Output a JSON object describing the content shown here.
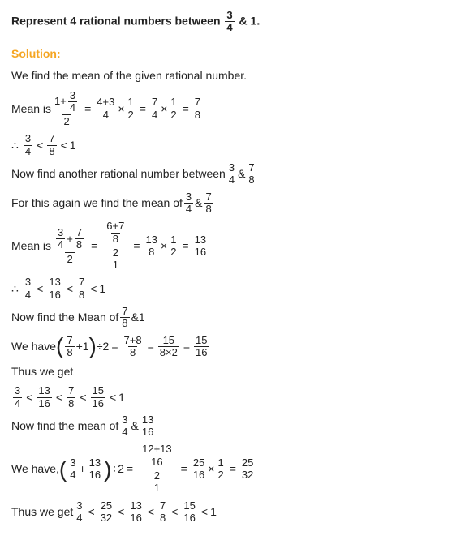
{
  "question": {
    "prefix": "Represent 4 rational numbers between ",
    "frac1_n": "3",
    "frac1_d": "4",
    "amp": "&",
    "end": "1."
  },
  "solution_label": "Solution:",
  "step1": "We find the mean of the given rational number.",
  "mean1": {
    "label": "Mean is ",
    "f1_n_1": "1",
    "f1_n_plus": "+",
    "f1_n_fn": "3",
    "f1_n_fd": "4",
    "f1_d": "2",
    "f2_n": "4+3",
    "f2_d": "4",
    "times1": "×",
    "f3_n": "1",
    "f3_d": "2",
    "f4_n": "7",
    "f4_d": "4",
    "f5_n": "1",
    "f5_d": "2",
    "f6_n": "7",
    "f6_d": "8"
  },
  "ineq1": {
    "a_n": "3",
    "a_d": "4",
    "b_n": "7",
    "b_d": "8",
    "end": "1"
  },
  "step2": {
    "text": "Now find another rational number between",
    "f1_n": "3",
    "f1_d": "4",
    "amp": "&",
    "f2_n": "7",
    "f2_d": "8"
  },
  "step3": {
    "text": "For this again we find the mean of ",
    "f1_n": "3",
    "f1_d": "4",
    "amp": "&",
    "f2_n": "7",
    "f2_d": "8"
  },
  "mean2": {
    "label": "Mean is ",
    "top_a_n": "3",
    "top_a_d": "4",
    "plus": "+",
    "top_b_n": "7",
    "top_b_d": "8",
    "bot": "2",
    "r1_top_n": "6+7",
    "r1_top_d": "8",
    "r1_bot_n": "2",
    "r1_bot_d": "1",
    "r2_n": "13",
    "r2_d": "8",
    "times": "×",
    "r3_n": "1",
    "r3_d": "2",
    "r4_n": "13",
    "r4_d": "16"
  },
  "ineq2": {
    "a_n": "3",
    "a_d": "4",
    "b_n": "13",
    "b_d": "16",
    "c_n": "7",
    "c_d": "8",
    "end": "1"
  },
  "step4": {
    "text": "Now find the Mean of ",
    "f1_n": "7",
    "f1_d": "8",
    "amp": "&",
    "end": "1"
  },
  "mean3": {
    "label": "We have ",
    "p_f_n": "7",
    "p_f_d": "8",
    "plus1": "+1",
    "div2": "÷2",
    "r1_n": "7+8",
    "r1_d": "8",
    "r2_n": "15",
    "r2_d": "8×2",
    "r3_n": "15",
    "r3_d": "16"
  },
  "thus1": "Thus we get",
  "ineq3": {
    "a_n": "3",
    "a_d": "4",
    "b_n": "13",
    "b_d": "16",
    "c_n": "7",
    "c_d": "8",
    "d_n": "15",
    "d_d": "16",
    "end": "1"
  },
  "step5": {
    "text": "Now find the mean of ",
    "f1_n": "3",
    "f1_d": "4",
    "amp": "&",
    "f2_n": "13",
    "f2_d": "16"
  },
  "mean4": {
    "label": "We have, ",
    "p_a_n": "3",
    "p_a_d": "4",
    "plus": "+",
    "p_b_n": "13",
    "p_b_d": "16",
    "div2": "÷2",
    "r1_top_n": "12+13",
    "r1_top_d": "16",
    "r1_bot_n": "2",
    "r1_bot_d": "1",
    "r2_n": "25",
    "r2_d": "16",
    "times": "×",
    "r3_n": "1",
    "r3_d": "2",
    "r4_n": "25",
    "r4_d": "32"
  },
  "thus2": "Thus we get",
  "ineq4": {
    "a_n": "3",
    "a_d": "4",
    "b_n": "25",
    "b_d": "32",
    "c_n": "13",
    "c_d": "16",
    "d_n": "7",
    "d_d": "8",
    "e_n": "15",
    "e_d": "16",
    "end": "1"
  }
}
